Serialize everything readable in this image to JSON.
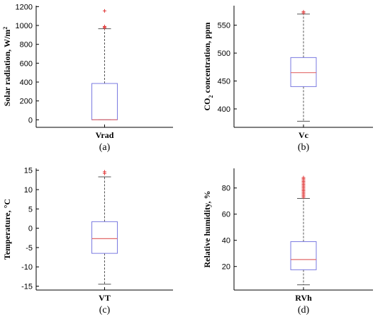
{
  "chart_data": [
    {
      "type": "box",
      "panel_label": "(a)",
      "ylabel": "Solar radiation, W/m",
      "ylabel_sup": "2",
      "ylabel_sub": "",
      "ylabel_rest": "",
      "category": "Vrad",
      "ylim": [
        -80,
        1210
      ],
      "yticks": [
        0,
        200,
        400,
        600,
        800,
        1000,
        1200
      ],
      "whisker_low": 0,
      "q1": 0,
      "median": 0,
      "q3": 385,
      "whisker_high": 965,
      "outliers": [
        975,
        985,
        990,
        1155
      ],
      "grid": false
    },
    {
      "type": "box",
      "panel_label": "(b)",
      "ylabel": "CO",
      "ylabel_sup": "",
      "ylabel_sub": "2",
      "ylabel_rest": " concentration, ppm",
      "category": "Vc",
      "ylim": [
        367,
        585
      ],
      "yticks": [
        400,
        450,
        500,
        550
      ],
      "whisker_low": 378,
      "q1": 440,
      "median": 465,
      "q3": 492,
      "whisker_high": 570,
      "outliers": [
        572,
        574
      ],
      "grid": false
    },
    {
      "type": "box",
      "panel_label": "(c)",
      "ylabel": "Temperature, °C",
      "ylabel_sup": "",
      "ylabel_sub": "",
      "ylabel_rest": "",
      "category": "VT",
      "ylim": [
        -16,
        15.5
      ],
      "yticks": [
        -15,
        -10,
        -5,
        0,
        5,
        10,
        15
      ],
      "whisker_low": -14.5,
      "q1": -6.5,
      "median": -2.7,
      "q3": 1.7,
      "whisker_high": 13.3,
      "outliers": [
        14.2,
        14.6
      ],
      "grid": false
    },
    {
      "type": "box",
      "panel_label": "(d)",
      "ylabel": "Relative humidity, %",
      "ylabel_sup": "",
      "ylabel_sub": "",
      "ylabel_rest": "",
      "category": "RVh",
      "ylim": [
        2,
        95
      ],
      "yticks": [
        20,
        40,
        60,
        80
      ],
      "whisker_low": 6,
      "q1": 17.5,
      "median": 25.3,
      "q3": 39,
      "whisker_high": 72,
      "outliers": [
        73,
        74,
        75,
        76,
        77,
        78,
        79,
        80,
        81,
        82,
        83,
        84,
        85,
        86,
        87,
        88
      ],
      "grid": false
    }
  ],
  "style": {
    "box_color": "#7a7ae0",
    "median_color": "#e26a6a",
    "whisker_color": "#555555",
    "outlier_color": "#e03a3a",
    "axis_color": "#000000"
  }
}
